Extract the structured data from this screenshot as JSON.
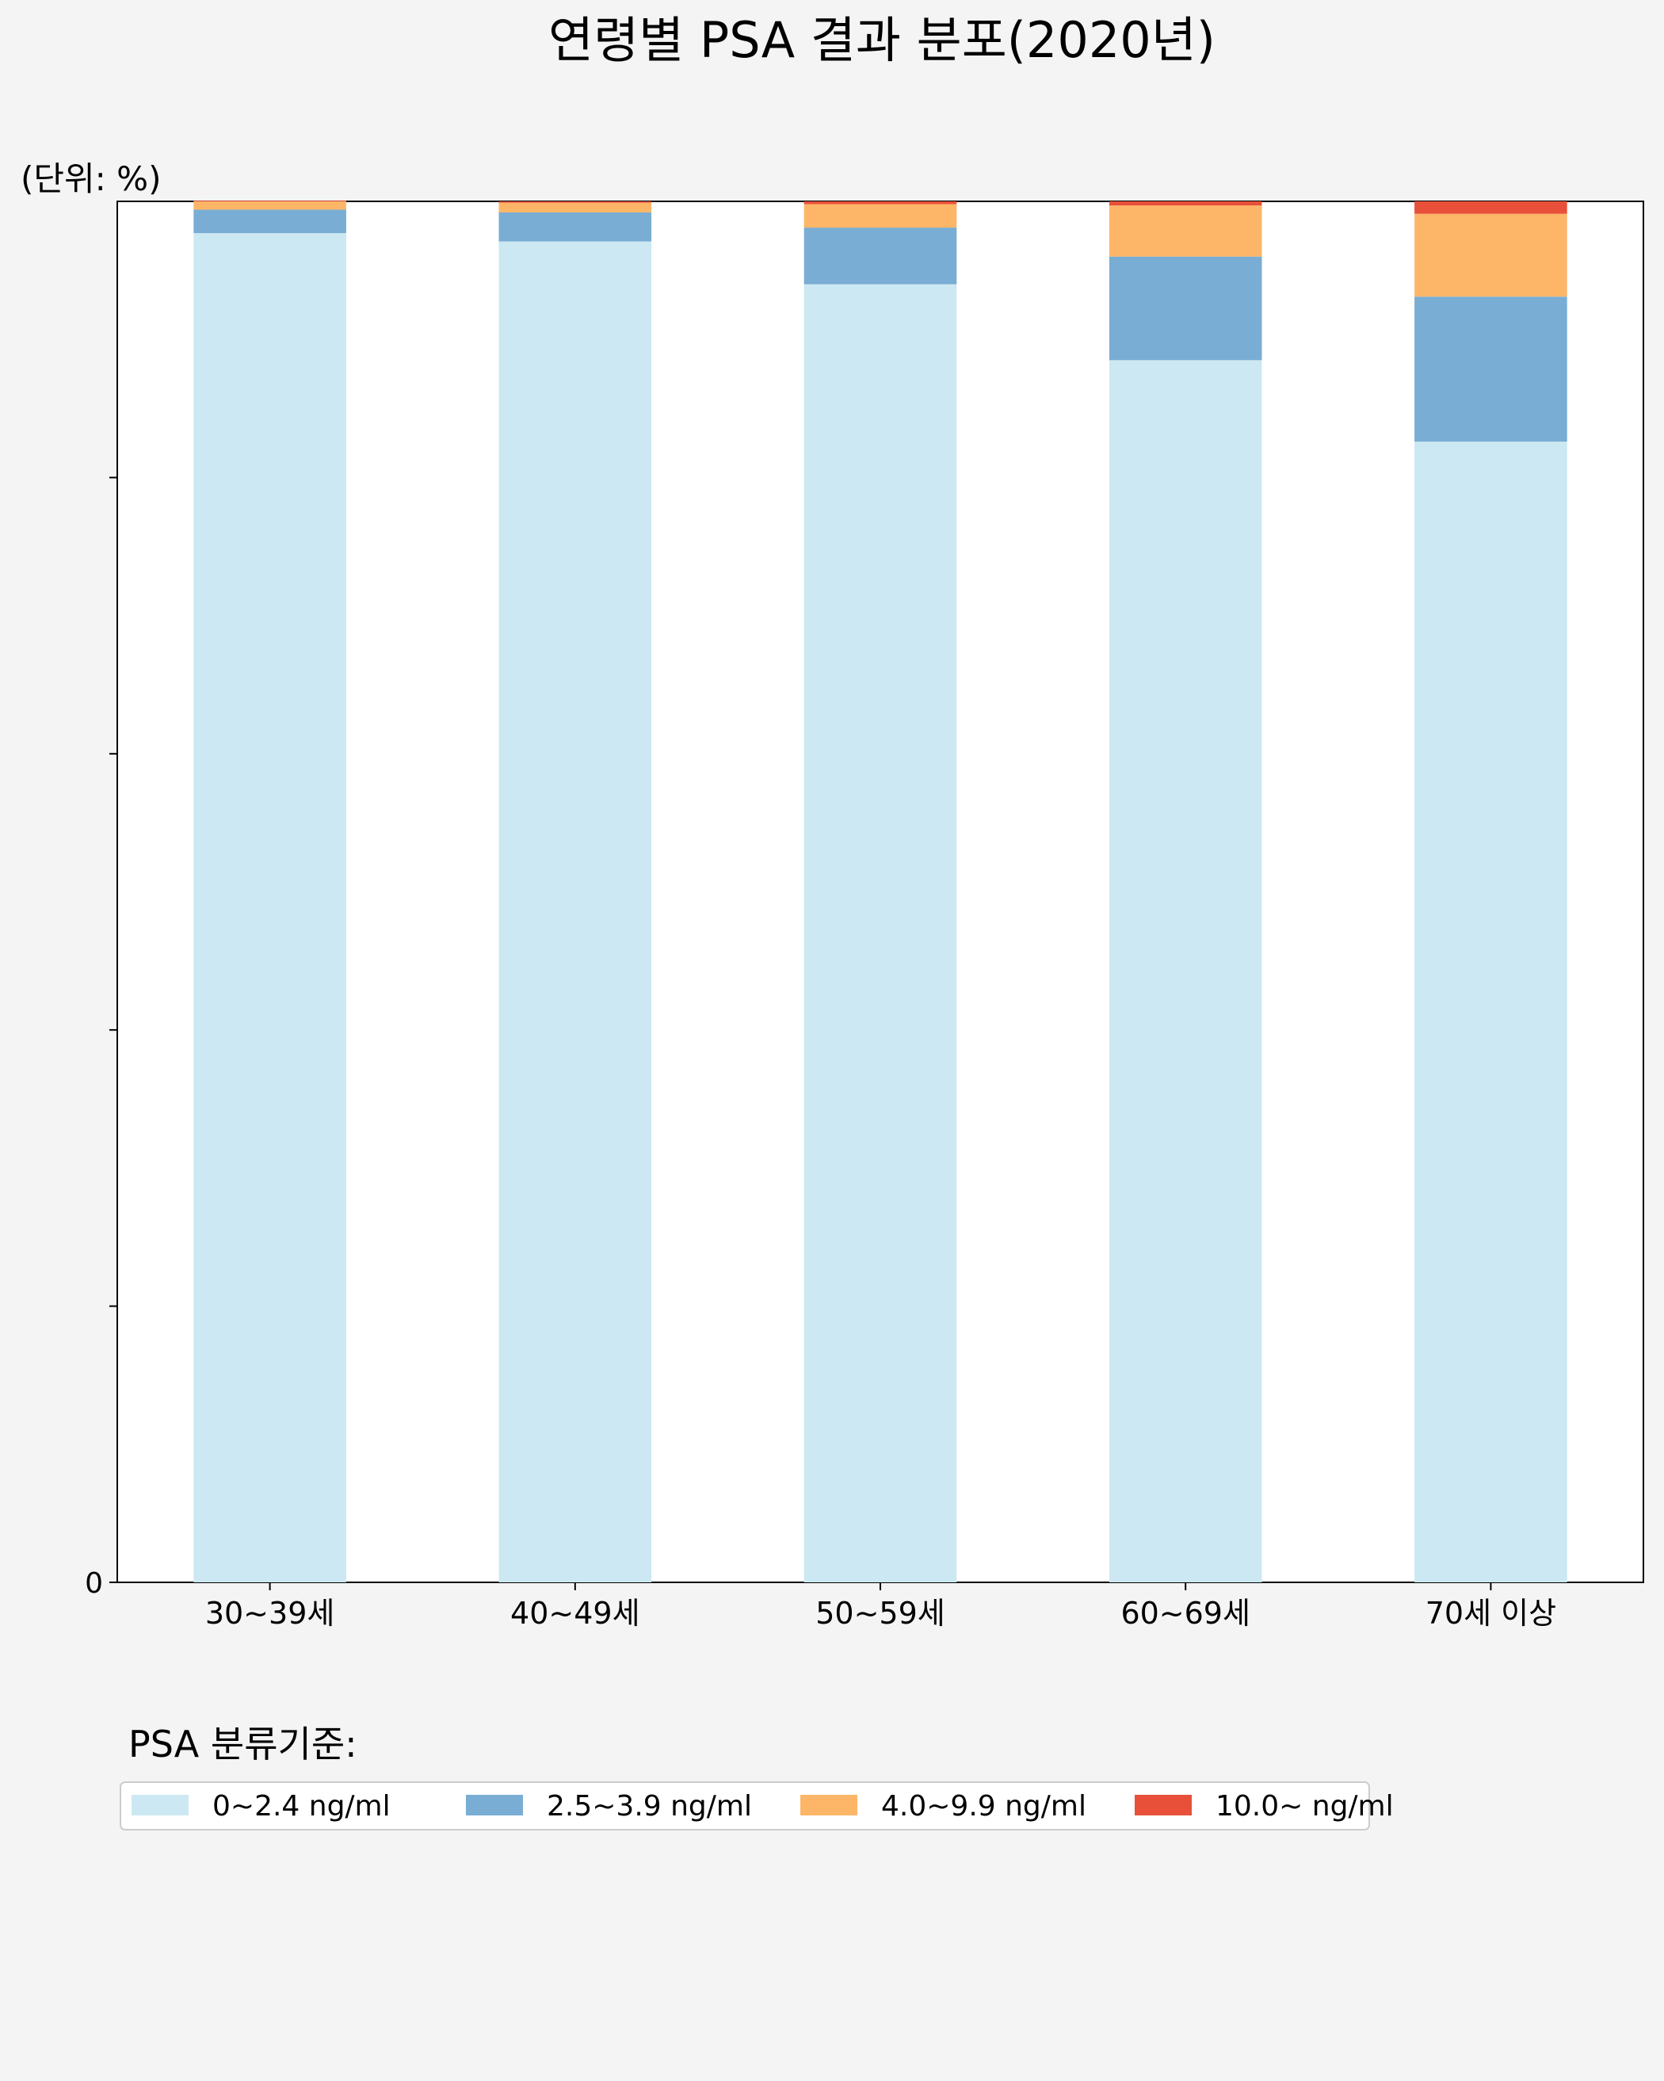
{
  "chart_data": {
    "type": "bar",
    "stacked": true,
    "title": "연령별 PSA 결과 분포(2020년)",
    "unit_label": "(단위: %)",
    "categories": [
      "30~39세",
      "40~49세",
      "50~59세",
      "60~69세",
      "70세 이상"
    ],
    "ylim": [
      0,
      100
    ],
    "yticks": [
      0
    ],
    "grid": false,
    "series": [
      {
        "name": "0~2.4 ng/ml",
        "color": "#cce8f2",
        "values": [
          97.7,
          97.1,
          94.0,
          88.5,
          82.6
        ]
      },
      {
        "name": "2.5~3.9 ng/ml",
        "color": "#79add4",
        "values": [
          1.7,
          2.1,
          4.1,
          7.5,
          10.5
        ]
      },
      {
        "name": "4.0~9.9 ng/ml",
        "color": "#fdb668",
        "values": [
          0.6,
          0.7,
          1.7,
          3.7,
          6.0
        ]
      },
      {
        "name": "10.0~ ng/ml",
        "color": "#e8503a",
        "values": [
          0.05,
          0.1,
          0.2,
          0.3,
          0.9
        ]
      }
    ],
    "legend": {
      "title": "PSA 분류기준:",
      "placement": "bottom"
    }
  }
}
